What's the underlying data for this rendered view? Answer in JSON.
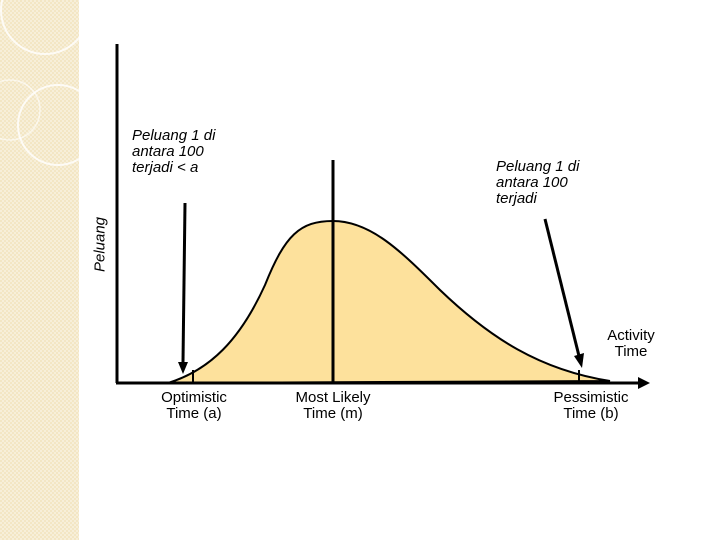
{
  "annotations": {
    "left_callout": [
      "Peluang 1 di",
      "antara 100",
      "terjadi < a"
    ],
    "right_callout": [
      "Peluang 1 di",
      "antara 100",
      "terjadi"
    ]
  },
  "axes": {
    "y_label": "Peluang",
    "x_label": [
      "Activity",
      "Time"
    ]
  },
  "markers": {
    "optimistic": [
      "Optimistic",
      "Time (a)"
    ],
    "most_likely": [
      "Most Likely",
      "Time (m)"
    ],
    "pessimistic": [
      "Pessimistic",
      "Time (b)"
    ]
  },
  "colors": {
    "curve_fill": "#fde19c",
    "stroke": "#000000",
    "side_strip": "#f3e6c4"
  }
}
